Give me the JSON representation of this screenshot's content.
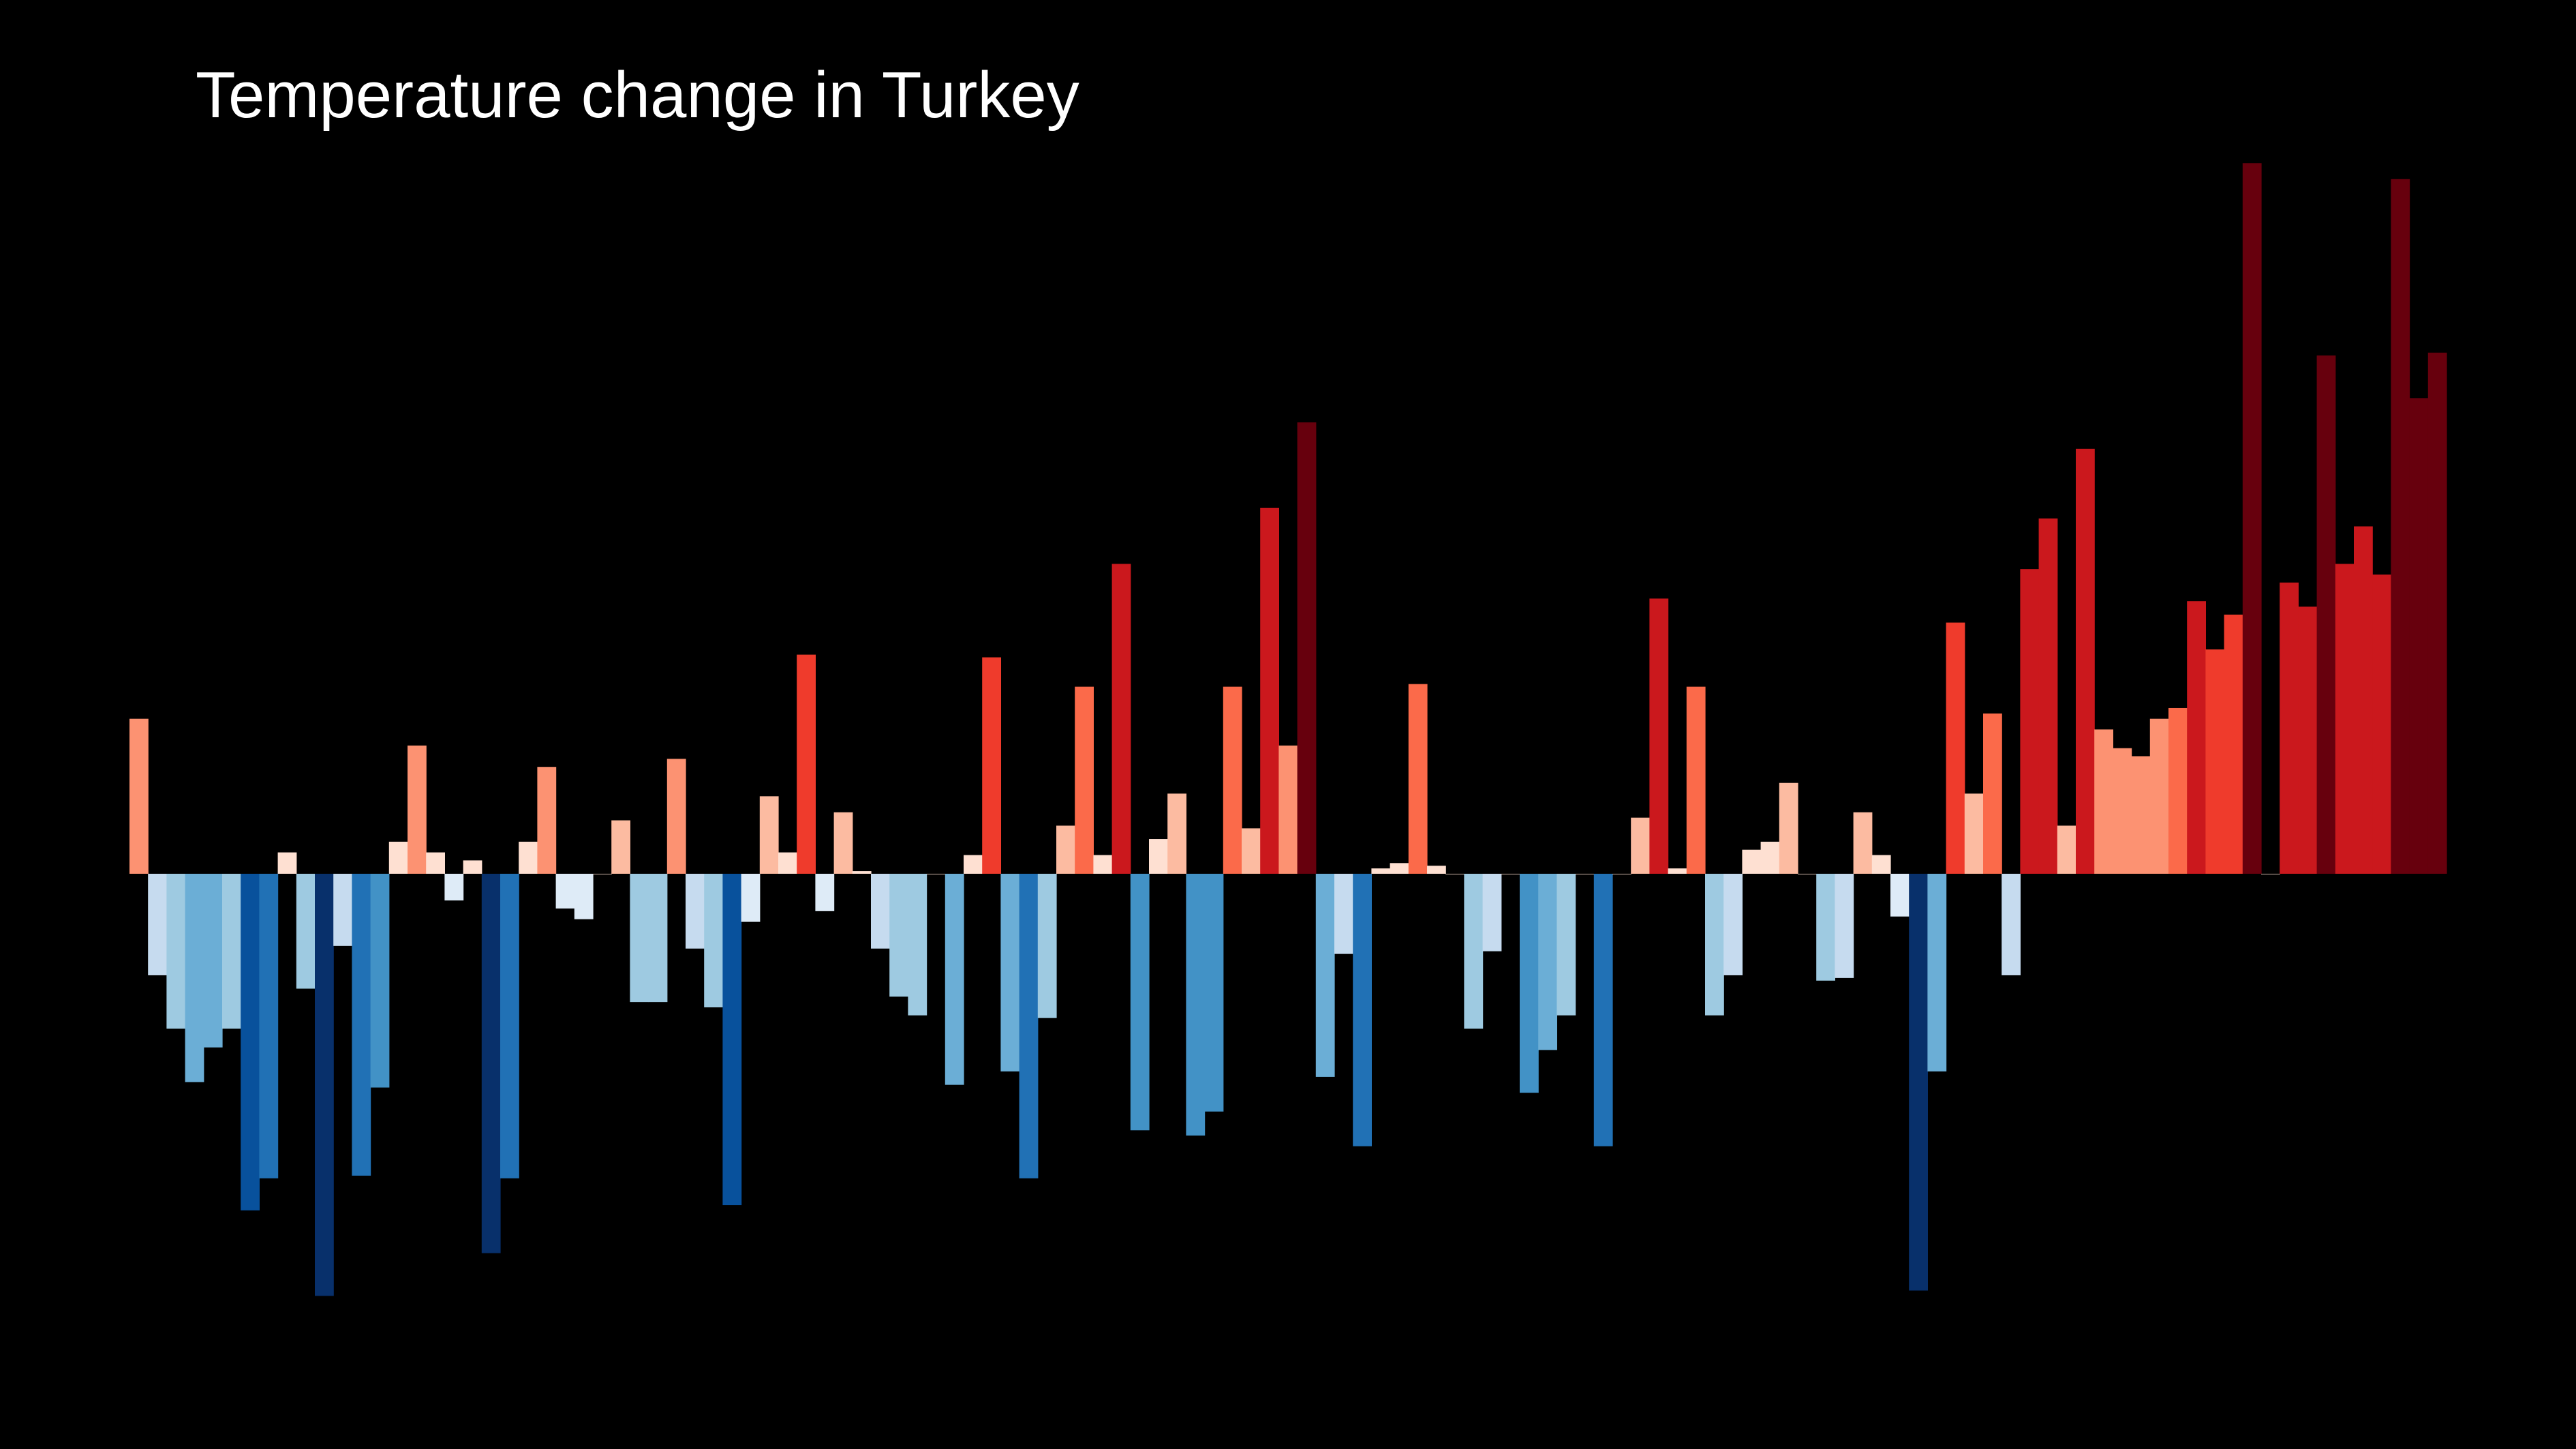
{
  "chart_data": {
    "type": "bar",
    "title": "Temperature change in Turkey",
    "xlabel": "",
    "ylabel": "",
    "axes_visible": false,
    "grid": false,
    "legend": "none",
    "ylim": [
      -1.6,
      2.7
    ],
    "values": [
      0.58,
      -0.38,
      -0.58,
      -0.78,
      -0.65,
      -0.58,
      -1.26,
      -1.14,
      0.08,
      -0.43,
      -1.58,
      -0.27,
      -1.13,
      -0.8,
      0.12,
      0.48,
      0.08,
      -0.1,
      0.05,
      -1.42,
      -1.14,
      0.12,
      0.4,
      -0.13,
      -0.17,
      0.0,
      0.2,
      -0.48,
      -0.48,
      0.43,
      -0.28,
      -0.5,
      -1.24,
      -0.18,
      0.29,
      0.08,
      0.82,
      -0.14,
      0.23,
      0.01,
      -0.28,
      -0.46,
      -0.53,
      0.0,
      -0.79,
      0.07,
      0.81,
      -0.74,
      -1.14,
      -0.54,
      0.18,
      0.7,
      0.07,
      1.16,
      -0.96,
      0.13,
      0.3,
      -0.98,
      -0.89,
      0.7,
      0.17,
      1.37,
      0.48,
      1.69,
      -0.76,
      -0.3,
      -1.02,
      0.02,
      0.04,
      0.71,
      0.03,
      0.0,
      -0.58,
      -0.29,
      0.0,
      -0.82,
      -0.66,
      -0.53,
      0.0,
      -1.02,
      0.0,
      0.21,
      1.03,
      0.02,
      0.7,
      -0.53,
      -0.38,
      0.09,
      0.12,
      0.34,
      0.0,
      -0.4,
      -0.39,
      0.23,
      0.07,
      -0.16,
      -1.56,
      -0.74,
      0.94,
      0.3,
      0.6,
      -0.38,
      1.14,
      1.33,
      0.18,
      1.59,
      0.54,
      0.47,
      0.44,
      0.58,
      0.62,
      1.02,
      0.84,
      0.97,
      2.66,
      0.0,
      1.09,
      1.0,
      1.94,
      1.16,
      1.3,
      1.12,
      2.6,
      1.78,
      1.95
    ],
    "colors": {
      "background": "#000000",
      "title": "#ffffff",
      "palette": "red-blue diverging",
      "cold_extreme": "#08306b",
      "cold_strong": "#08519c",
      "cold_medium": "#2171b5",
      "cold_mid": "#4292c6",
      "cold_light": "#6baed6",
      "cold_pale": "#9ecae1",
      "cold_faint": "#c6dbef",
      "cool_trace": "#deebf7",
      "warm_trace": "#fee0d2",
      "warm_faint": "#fcbba1",
      "warm_pale": "#fc9272",
      "warm_light": "#fb6a4a",
      "warm_mid": "#ef3b2c",
      "warm_strong": "#cb181d",
      "warm_extreme": "#67000d"
    }
  }
}
